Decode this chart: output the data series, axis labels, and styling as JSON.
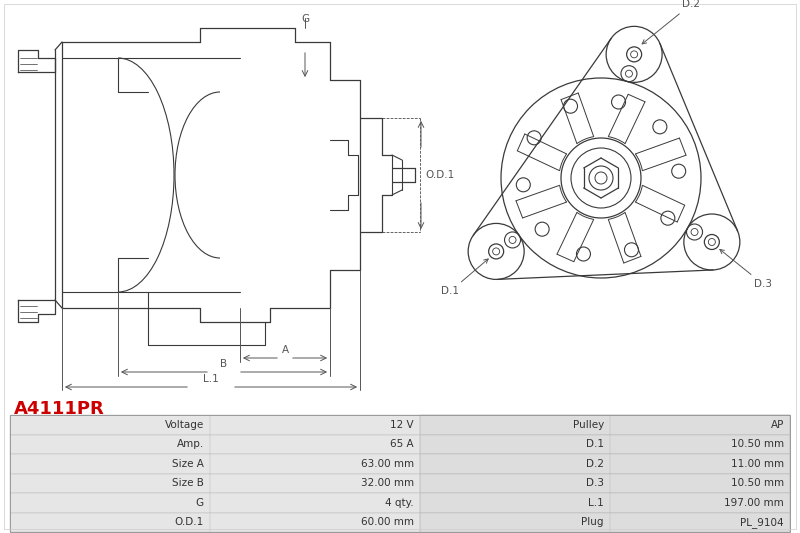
{
  "title": "A4111PR",
  "title_color": "#cc0000",
  "bg_color": "#ffffff",
  "line_color": "#3a3a3a",
  "table_data": [
    [
      "Voltage",
      "12 V",
      "Pulley",
      "AP"
    ],
    [
      "Amp.",
      "65 A",
      "D.1",
      "10.50 mm"
    ],
    [
      "Size A",
      "63.00 mm",
      "D.2",
      "11.00 mm"
    ],
    [
      "Size B",
      "32.00 mm",
      "D.3",
      "10.50 mm"
    ],
    [
      "G",
      "4 qty.",
      "L.1",
      "197.00 mm"
    ],
    [
      "O.D.1",
      "60.00 mm",
      "Plug",
      "PL_9104"
    ]
  ]
}
